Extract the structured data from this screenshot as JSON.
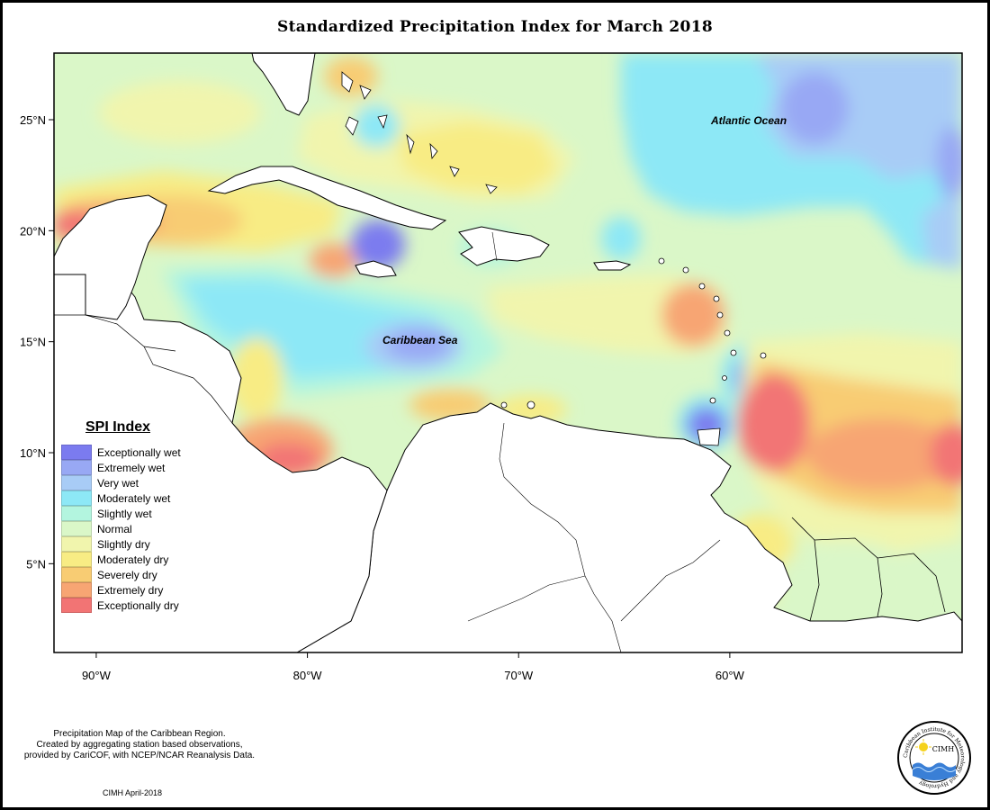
{
  "title": "Standardized Precipitation Index for March 2018",
  "map": {
    "lon_range": [
      -92,
      -49
    ],
    "lat_range": [
      1.0,
      28.0
    ],
    "lat_ticks": [
      {
        "value": 25,
        "label": "25°N"
      },
      {
        "value": 20,
        "label": "20°N"
      },
      {
        "value": 15,
        "label": "15°N"
      },
      {
        "value": 10,
        "label": "10°N"
      },
      {
        "value": 5,
        "label": "5°N"
      }
    ],
    "lon_ticks": [
      {
        "value": -90,
        "label": "90°W"
      },
      {
        "value": -80,
        "label": "80°W"
      },
      {
        "value": -70,
        "label": "70°W"
      },
      {
        "value": -60,
        "label": "60°W"
      }
    ],
    "labels": {
      "atlantic": "Atlantic Ocean",
      "caribbean": "Caribbean Sea"
    }
  },
  "legend": {
    "title": "SPI Index",
    "items": [
      {
        "label": "Exceptionally wet",
        "color": "#7b7bef"
      },
      {
        "label": "Extremely wet",
        "color": "#98a8f4"
      },
      {
        "label": "Very wet",
        "color": "#a8ccf6"
      },
      {
        "label": "Moderately wet",
        "color": "#8de8f6"
      },
      {
        "label": "Slightly wet",
        "color": "#b3f5df"
      },
      {
        "label": "Normal",
        "color": "#daf7c8"
      },
      {
        "label": "Slightly dry",
        "color": "#f1f5ad"
      },
      {
        "label": "Moderately dry",
        "color": "#f8ec84"
      },
      {
        "label": "Severely dry",
        "color": "#f8cc73"
      },
      {
        "label": "Extremely dry",
        "color": "#f7a573"
      },
      {
        "label": "Exceptionally dry",
        "color": "#f27474"
      }
    ]
  },
  "credit": {
    "line1": "Precipitation Map of the Caribbean Region.",
    "line2": "Created by aggregating station based observations,",
    "line3": "provided by CariCOF, with NCEP/NCAR Reanalysis Data.",
    "date": "CIMH April-2018"
  },
  "logo": {
    "label": "CIMH",
    "ring_text": "Caribbean Institute for Meteorology and Hydrology",
    "icon": "cimh-logo-icon"
  }
}
